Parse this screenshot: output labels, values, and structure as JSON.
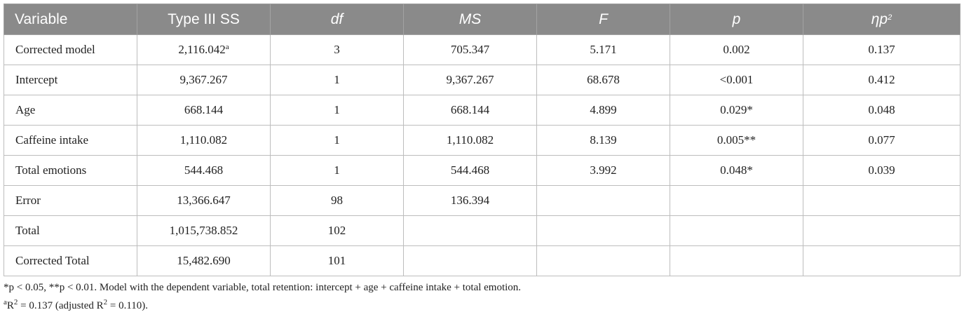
{
  "table": {
    "headers": [
      "Variable",
      "Type III SS",
      "df",
      "MS",
      "F",
      "p",
      "ηp",
      "2"
    ],
    "rows": [
      [
        "Corrected model",
        "2,116.042",
        "a",
        "3",
        "705.347",
        "5.171",
        "0.002",
        "0.137"
      ],
      [
        "Intercept",
        "9,367.267",
        "",
        "1",
        "9,367.267",
        "68.678",
        "<0.001",
        "0.412"
      ],
      [
        "Age",
        "668.144",
        "",
        "1",
        "668.144",
        "4.899",
        "0.029*",
        "0.048"
      ],
      [
        "Caffeine intake",
        "1,110.082",
        "",
        "1",
        "1,110.082",
        "8.139",
        "0.005**",
        "0.077"
      ],
      [
        "Total emotions",
        "544.468",
        "",
        "1",
        "544.468",
        "3.992",
        "0.048*",
        "0.039"
      ],
      [
        "Error",
        "13,366.647",
        "",
        "98",
        "136.394",
        "",
        "",
        ""
      ],
      [
        "Total",
        "1,015,738.852",
        "",
        "102",
        "",
        "",
        "",
        ""
      ],
      [
        "Corrected Total",
        "15,482.690",
        "",
        "101",
        "",
        "",
        "",
        ""
      ]
    ]
  },
  "footnotes": {
    "note1": "*p < 0.05, **p < 0.01. Model with the dependent variable, total retention: intercept + age + caffeine intake + total emotion.",
    "note2_mark": "a",
    "note2_a": "R",
    "note2_sup1": "2",
    "note2_b": " = 0.137 (adjusted R",
    "note2_sup2": "2",
    "note2_c": " = 0.110)."
  }
}
